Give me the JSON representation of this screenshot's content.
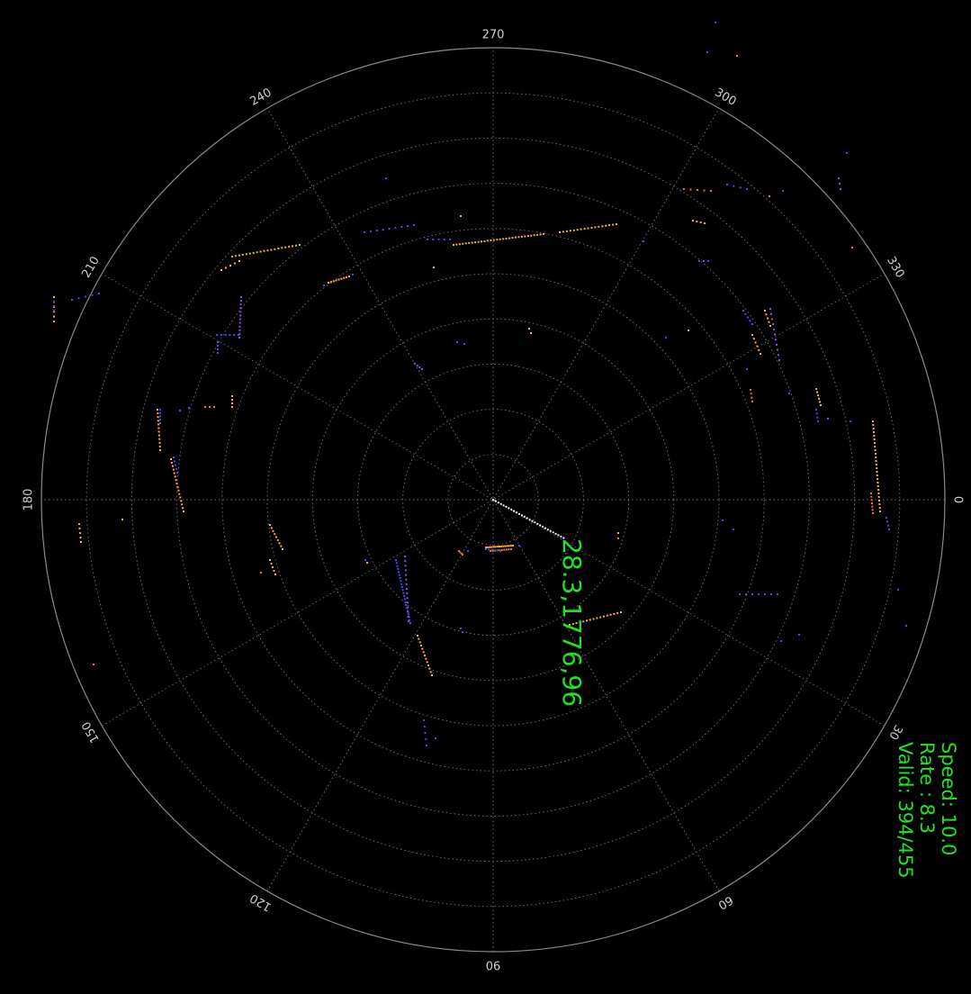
{
  "radar": {
    "angle_labels": [
      "0",
      "30",
      "60",
      "90",
      "120",
      "150",
      "180",
      "210",
      "240",
      "270",
      "300",
      "330"
    ],
    "ring_count": 10,
    "colors": {
      "background": "#000000",
      "grid": "#6e6e6e",
      "outer_ring": "#8a8a8a",
      "label": "#cfcfcf",
      "text": "#1ee61e",
      "point_orange": "#ffb030",
      "point_dark_orange": "#ff7020",
      "point_blue": "#4848ff",
      "point_violet": "#8a4cff",
      "beam": "#ffffff"
    }
  },
  "pointer_readout": "28.3,1776,96",
  "stats": {
    "speed": "Speed:  10.0",
    "rate": "Rate :  8.3",
    "valid": "Valid:  394/455"
  }
}
